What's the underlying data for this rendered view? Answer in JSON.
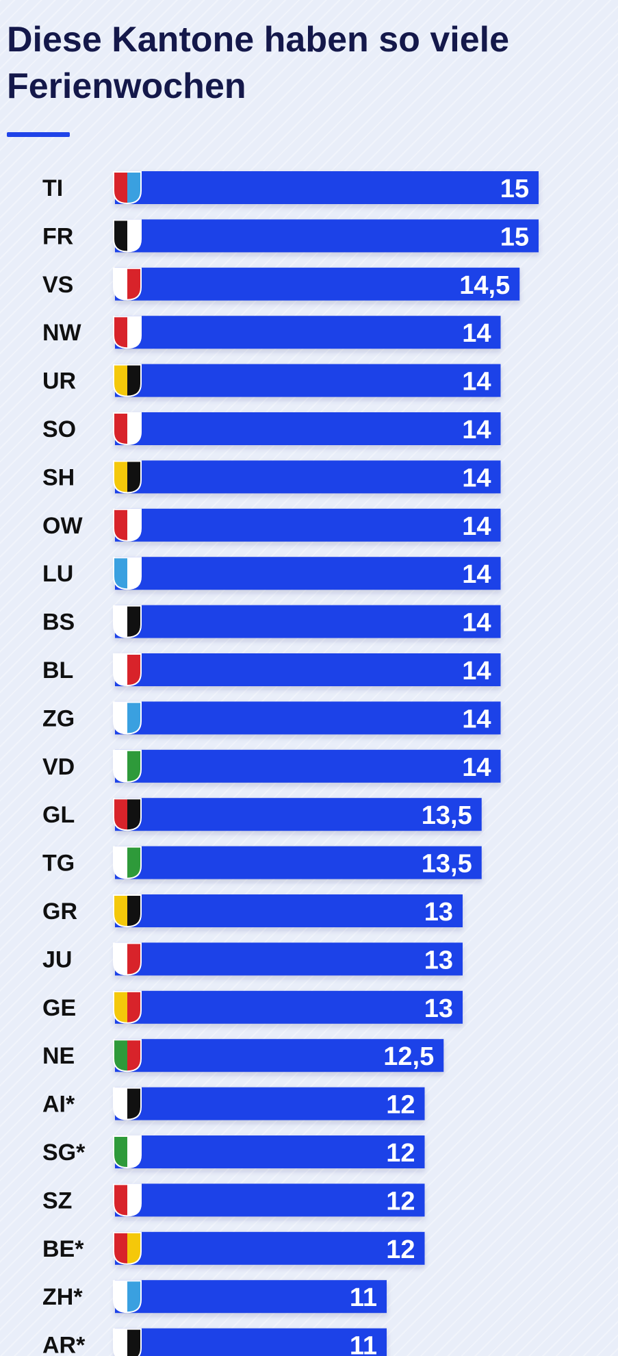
{
  "header": {
    "title": "Diese Kantone haben so viele Ferienwochen"
  },
  "colors": {
    "bar": "#1f43e8",
    "accent": "#1f43e8",
    "title": "#14184a",
    "label": "#101010",
    "value": "#ffffff"
  },
  "chart_data": {
    "type": "bar",
    "orientation": "horizontal",
    "title": "Diese Kantone haben so viele Ferienwochen",
    "xlabel": "",
    "ylabel": "",
    "xlim": [
      0,
      15
    ],
    "grid": false,
    "categories": [
      "TI",
      "FR",
      "VS",
      "NW",
      "UR",
      "SO",
      "SH",
      "OW",
      "LU",
      "BS",
      "BL",
      "ZG",
      "VD",
      "GL",
      "TG",
      "GR",
      "JU",
      "GE",
      "NE",
      "AI*",
      "SG*",
      "SZ",
      "BE*",
      "ZH*",
      "AR*"
    ],
    "values": [
      15,
      15,
      14.5,
      14,
      14,
      14,
      14,
      14,
      14,
      14,
      14,
      14,
      14,
      13.5,
      13.5,
      13,
      13,
      13,
      12.5,
      12,
      12,
      12,
      12,
      11,
      11
    ],
    "value_labels": [
      "15",
      "15",
      "14,5",
      "14",
      "14",
      "14",
      "14",
      "14",
      "14",
      "14",
      "14",
      "14",
      "14",
      "13,5",
      "13,5",
      "13",
      "13",
      "13",
      "12,5",
      "12",
      "12",
      "12",
      "12",
      "11",
      "11"
    ],
    "flags": [
      {
        "icon": "ticino-flag-icon",
        "colors": [
          "#d8232a",
          "#3aa0e0"
        ]
      },
      {
        "icon": "fribourg-flag-icon",
        "colors": [
          "#111111",
          "#ffffff"
        ]
      },
      {
        "icon": "valais-flag-icon",
        "colors": [
          "#ffffff",
          "#d8232a"
        ]
      },
      {
        "icon": "nidwalden-flag-icon",
        "colors": [
          "#d8232a",
          "#ffffff"
        ]
      },
      {
        "icon": "uri-flag-icon",
        "colors": [
          "#f4c80a",
          "#111111"
        ]
      },
      {
        "icon": "solothurn-flag-icon",
        "colors": [
          "#d8232a",
          "#ffffff"
        ]
      },
      {
        "icon": "schaffhausen-flag-icon",
        "colors": [
          "#f4c80a",
          "#111111"
        ]
      },
      {
        "icon": "obwalden-flag-icon",
        "colors": [
          "#d8232a",
          "#ffffff"
        ]
      },
      {
        "icon": "luzern-flag-icon",
        "colors": [
          "#3aa0e0",
          "#ffffff"
        ]
      },
      {
        "icon": "basel-stadt-flag-icon",
        "colors": [
          "#ffffff",
          "#111111"
        ]
      },
      {
        "icon": "basel-land-flag-icon",
        "colors": [
          "#ffffff",
          "#d8232a"
        ]
      },
      {
        "icon": "zug-flag-icon",
        "colors": [
          "#ffffff",
          "#3aa0e0"
        ]
      },
      {
        "icon": "vaud-flag-icon",
        "colors": [
          "#ffffff",
          "#2e9a3a"
        ]
      },
      {
        "icon": "glarus-flag-icon",
        "colors": [
          "#d8232a",
          "#111111"
        ]
      },
      {
        "icon": "thurgau-flag-icon",
        "colors": [
          "#ffffff",
          "#2e9a3a"
        ]
      },
      {
        "icon": "graubuenden-flag-icon",
        "colors": [
          "#f4c80a",
          "#111111"
        ]
      },
      {
        "icon": "jura-flag-icon",
        "colors": [
          "#ffffff",
          "#d8232a"
        ]
      },
      {
        "icon": "geneve-flag-icon",
        "colors": [
          "#f4c80a",
          "#d8232a"
        ]
      },
      {
        "icon": "neuchatel-flag-icon",
        "colors": [
          "#2e9a3a",
          "#d8232a"
        ]
      },
      {
        "icon": "appenzell-innerrhoden-flag-icon",
        "colors": [
          "#ffffff",
          "#111111"
        ]
      },
      {
        "icon": "st-gallen-flag-icon",
        "colors": [
          "#2e9a3a",
          "#ffffff"
        ]
      },
      {
        "icon": "schwyz-flag-icon",
        "colors": [
          "#d8232a",
          "#ffffff"
        ]
      },
      {
        "icon": "bern-flag-icon",
        "colors": [
          "#d8232a",
          "#f4c80a"
        ]
      },
      {
        "icon": "zuerich-flag-icon",
        "colors": [
          "#ffffff",
          "#3aa0e0"
        ]
      },
      {
        "icon": "appenzell-ausserrhoden-flag-icon",
        "colors": [
          "#ffffff",
          "#111111"
        ]
      }
    ]
  }
}
